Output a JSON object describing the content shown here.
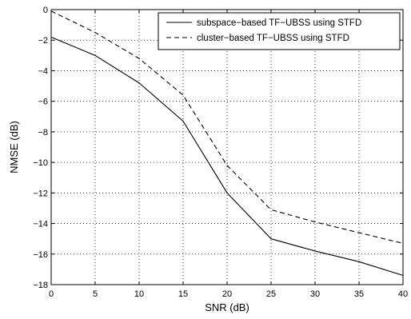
{
  "chart_data": {
    "type": "line",
    "title": "",
    "xlabel": "SNR (dB)",
    "ylabel": "NMSE (dB)",
    "xlim": [
      0,
      40
    ],
    "ylim": [
      -18,
      0
    ],
    "x_ticks": [
      0,
      5,
      10,
      15,
      20,
      25,
      30,
      35,
      40
    ],
    "y_ticks": [
      0,
      -2,
      -4,
      -6,
      -8,
      -10,
      -12,
      -14,
      -16,
      -18
    ],
    "grid": true,
    "legend_position": "top-right",
    "x": [
      0,
      5,
      10,
      15,
      20,
      25,
      30,
      35,
      40
    ],
    "series": [
      {
        "name": "subspace−based TF−UBSS using STFD",
        "line_style": "solid",
        "color": "#000000",
        "values": [
          -1.8,
          -3.0,
          -4.8,
          -7.3,
          -12.0,
          -15.0,
          -15.8,
          -16.5,
          -17.4
        ]
      },
      {
        "name": "cluster−based TF−UBSS using STFD",
        "line_style": "dashed",
        "color": "#000000",
        "values": [
          -0.1,
          -1.5,
          -3.2,
          -5.6,
          -10.2,
          -13.1,
          -13.9,
          -14.6,
          -15.3
        ]
      }
    ]
  }
}
